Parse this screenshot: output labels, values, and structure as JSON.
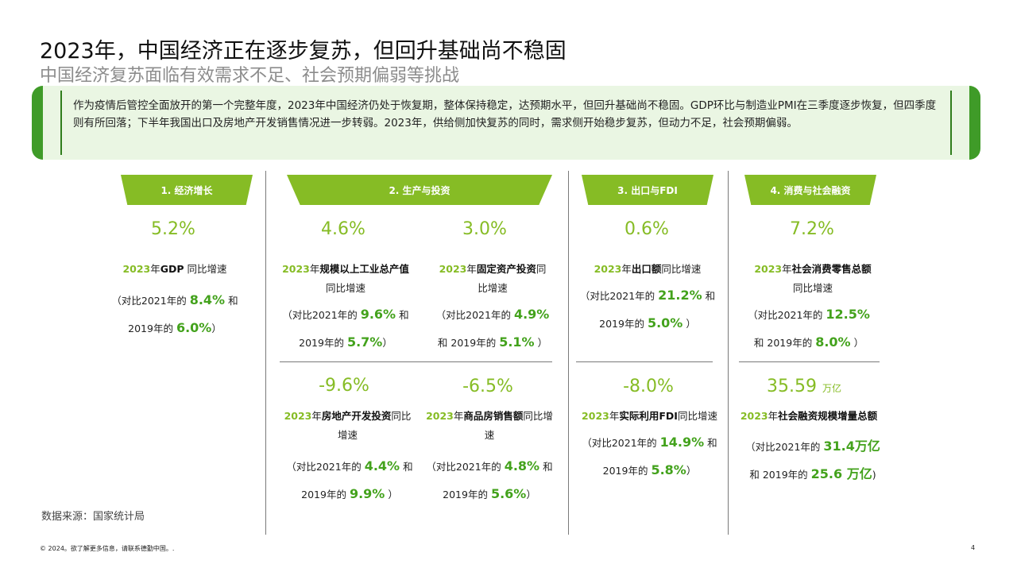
{
  "title": "2023年，中国经济正在逐步复苏，但回升基础尚不稳固",
  "subtitle": "中国经济复苏面临有效需求不足、社会预期偏弱等挑战",
  "summary": "作为疫情后管控全面放开的第一个完整年度，2023年中国经济仍处于恢复期，整体保持稳定，达预期水平，但回升基础尚不稳固。GDP环比与制造业PMI在三季度逐步恢复，但四季度则有所回落；下半年我国出口及房地产开发销售情况进一步转弱。2023年，供给侧加快复苏的同时，需求侧开始稳步复苏，但动力不足，社会预期偏弱。",
  "colors": {
    "accent": "#86bc25",
    "value_green": "#43a21c",
    "dark_green": "#2f7d1c"
  },
  "common": {
    "year": "2023",
    "nian": "年",
    "cmp_2021_prefix": "（对比2021年的",
    "and": "和",
    "and_2019": "和 2019年的",
    "y2019": "2019年的",
    "close": "）",
    "yoy": "同比增速",
    "tong": "同",
    "bi_growth": "比增速",
    "tongbi": "同比",
    "zengsu": "增速",
    "tongbi_zeng": "同比增",
    "su": "速"
  },
  "sections": [
    {
      "tab": "1. 经济增长"
    },
    {
      "tab": "2. 生产与投资"
    },
    {
      "tab": "3. 出口与FDI"
    },
    {
      "tab": "4. 消费与社会融资"
    }
  ],
  "metrics": {
    "gdp": {
      "value": "5.2%",
      "label": "GDP",
      "v2021": "8.4%",
      "v2019": "6.0%"
    },
    "industrial": {
      "value": "4.6%",
      "label": "规模以上工业总产值",
      "v2021": "9.6%",
      "v2019": "5.7%"
    },
    "fixed_asset": {
      "value": "3.0%",
      "label": "固定资产投资",
      "v2021": "4.9%",
      "v2019": "5.1%"
    },
    "real_estate": {
      "value": "-9.6%",
      "label": "房地产开发投资",
      "v2021": "4.4%",
      "v2019": "9.9%"
    },
    "housing_sales": {
      "value": "-6.5%",
      "label": "商品房销售额",
      "v2021": "4.8%",
      "v2019": "5.6%"
    },
    "exports": {
      "value": "0.6%",
      "label": "出口额",
      "v2021": "21.2%",
      "v2019": "5.0%"
    },
    "fdi": {
      "value": "-8.0%",
      "label": "实际利用FDI",
      "v2021": "14.9%",
      "v2019": "5.8%"
    },
    "retail": {
      "value": "7.2%",
      "label": "社会消费零售总额",
      "v2021": "12.5%",
      "v2019": "8.0%"
    },
    "financing": {
      "value": "35.59",
      "unit": "万亿",
      "label": "社会融资规模增量总额",
      "v2021": "31.4万亿",
      "v2019": "25.6 万亿",
      "close": ")"
    }
  },
  "source": "数据来源：国家统计局",
  "footer": "© 2024。欲了解更多信息，请联系德勤中国。.",
  "page_number": "4"
}
